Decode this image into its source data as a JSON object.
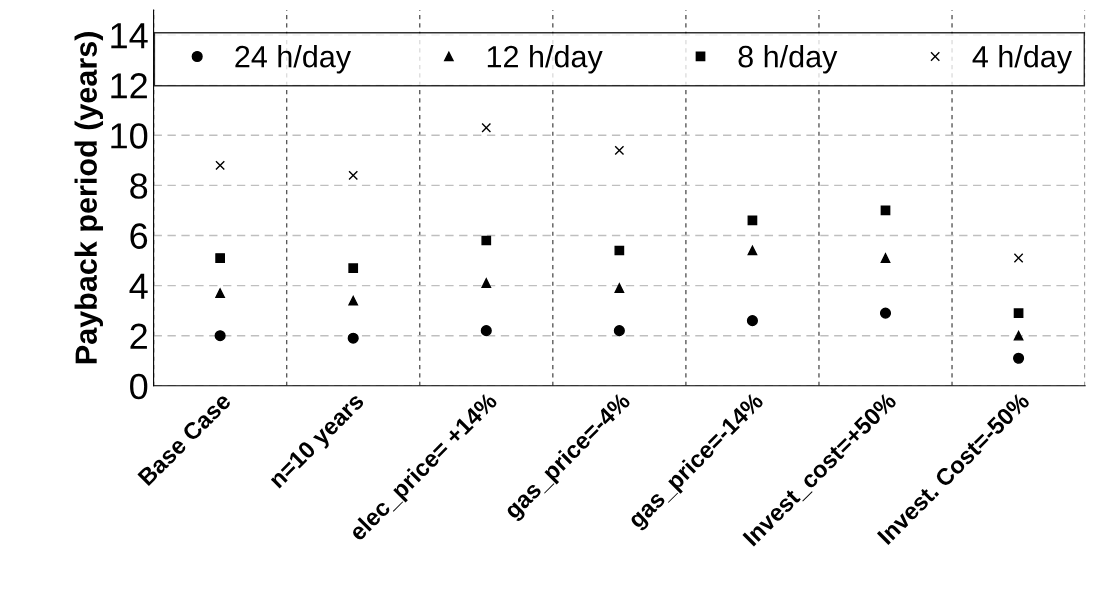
{
  "chart_data": {
    "type": "scatter",
    "ylabel": "Payback period (years)",
    "categories": [
      "Base Case",
      "n=10 years",
      "elec_price= +14%",
      "gas_price=-4%",
      "gas_price=-14%",
      "Invest_cost=+50%",
      "Invest. Cost=-50%"
    ],
    "series": [
      {
        "name": "24 h/day",
        "color": "#000000",
        "marker": "circle",
        "values": [
          2.0,
          1.9,
          2.2,
          2.2,
          2.6,
          2.9,
          1.1
        ]
      },
      {
        "name": "12 h/day",
        "color": "#000000",
        "marker": "triangle",
        "values": [
          3.7,
          3.4,
          4.1,
          3.9,
          5.4,
          5.1,
          2.0
        ]
      },
      {
        "name": "8 h/day",
        "color": "#000000",
        "marker": "square",
        "values": [
          5.1,
          4.7,
          5.8,
          5.4,
          6.6,
          7.0,
          2.9
        ]
      },
      {
        "name": "4 h/day",
        "color": "#000000",
        "marker": "cross",
        "values": [
          8.8,
          8.4,
          10.3,
          9.4,
          null,
          null,
          5.1
        ]
      }
    ],
    "ylim": [
      0,
      15
    ],
    "yticks": [
      0,
      2,
      4,
      6,
      8,
      10,
      12,
      14
    ],
    "grid": true,
    "legend": "top"
  }
}
